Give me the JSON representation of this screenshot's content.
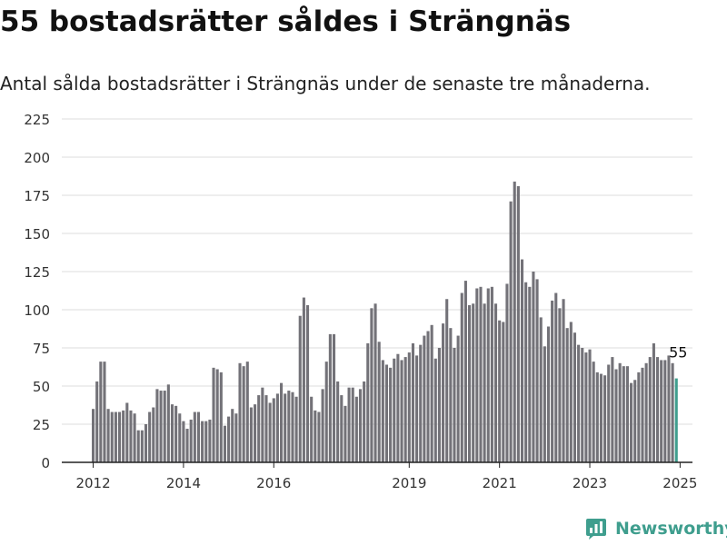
{
  "header": {
    "title": "55 bostadsrätter såldes i Strängnäs",
    "subtitle": "Antal sålda bostadsrätter i Strängnäs under de senaste tre månaderna."
  },
  "brand": {
    "name": "Newsworthy",
    "icon": "newsworthy-logo-icon",
    "color": "#3f9e8e"
  },
  "chart_data": {
    "type": "bar",
    "title": "55 bostadsrätter såldes i Strängnäs",
    "subtitle": "Antal sålda bostadsrätter i Strängnäs under de senaste tre månaderna.",
    "xlabel": "",
    "ylabel": "",
    "ylim": [
      0,
      225
    ],
    "yticks": [
      0,
      25,
      50,
      75,
      100,
      125,
      150,
      175,
      200,
      225
    ],
    "grid": true,
    "x_start": "2012-01",
    "xticks": [
      "2012",
      "2014",
      "2016",
      "2019",
      "2021",
      "2023",
      "2025"
    ],
    "bar_color": "#737278",
    "highlight_color": "#3f9e8e",
    "highlight_label": "55",
    "values": [
      35,
      53,
      66,
      66,
      35,
      33,
      33,
      33,
      34,
      39,
      34,
      32,
      21,
      21,
      25,
      33,
      36,
      48,
      47,
      47,
      51,
      38,
      37,
      32,
      27,
      22,
      28,
      33,
      33,
      27,
      27,
      28,
      62,
      61,
      59,
      24,
      30,
      35,
      32,
      65,
      63,
      66,
      36,
      38,
      44,
      49,
      44,
      39,
      42,
      45,
      52,
      45,
      47,
      46,
      43,
      96,
      108,
      103,
      43,
      34,
      33,
      48,
      66,
      84,
      84,
      53,
      44,
      37,
      49,
      49,
      43,
      48,
      53,
      78,
      101,
      104,
      79,
      67,
      64,
      62,
      68,
      71,
      67,
      69,
      72,
      78,
      70,
      77,
      83,
      86,
      90,
      68,
      75,
      91,
      107,
      88,
      75,
      83,
      111,
      119,
      103,
      104,
      114,
      115,
      104,
      114,
      115,
      104,
      93,
      92,
      117,
      171,
      184,
      181,
      133,
      118,
      115,
      125,
      120,
      95,
      76,
      89,
      106,
      111,
      101,
      107,
      88,
      92,
      85,
      77,
      75,
      72,
      74,
      66,
      59,
      58,
      57,
      64,
      69,
      61,
      65,
      63,
      63,
      52,
      54,
      59,
      62,
      65,
      69,
      78,
      69,
      67,
      67,
      70,
      65,
      55
    ]
  }
}
